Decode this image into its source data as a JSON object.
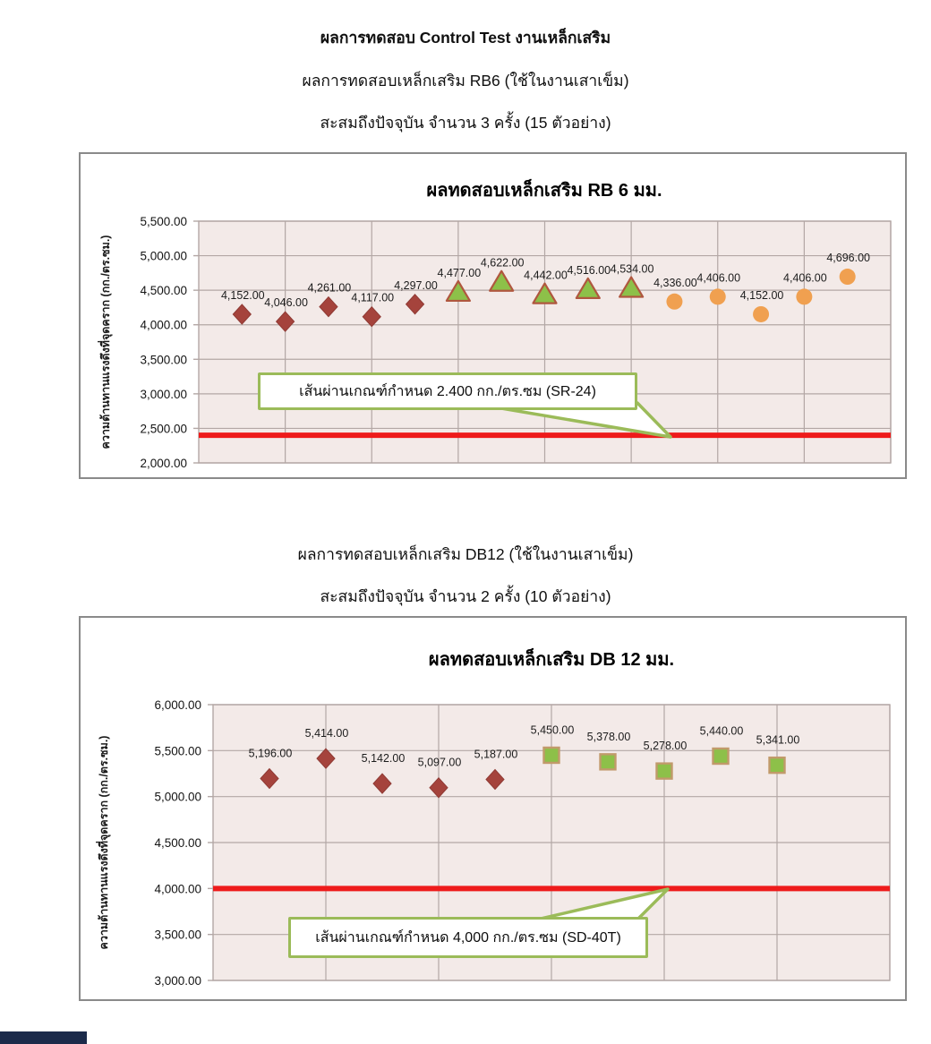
{
  "page": {
    "header": {
      "line1": "ผลการทดสอบ Control Test งานเหล็กเสริม",
      "line2": "ผลการทดสอบเหล็กเสริม RB6 (ใช้ในงานเสาเข็ม)",
      "line3": "สะสมถึงปัจจุบัน จำนวน 3 ครั้ง (15 ตัวอย่าง)"
    },
    "mid_header": {
      "line1": "ผลการทดสอบเหล็กเสริม DB12 (ใช้ในงานเสาเข็ม)",
      "line2": "สะสมถึงปัจจุบัน จำนวน 2 ครั้ง (10 ตัวอย่าง)"
    }
  },
  "colors": {
    "plot_bg": "#F3EAE8",
    "grid": "#B3A7A5",
    "tick_text": "#141414",
    "label_text": "#1c1c1c",
    "limit_red": "#EE1B1B",
    "callout_green": "#9BBB59",
    "chart_border": "#8a8a8a",
    "footer_bar": "#1b2a4a",
    "markers": {
      "diamond": {
        "fill": "#A5433C",
        "stroke": "#8F3A34"
      },
      "triangle": {
        "fill": "#8DC049",
        "stroke": "#B0573F"
      },
      "circle": {
        "fill": "#F0A050",
        "stroke": "none"
      },
      "square": {
        "fill": "#8DC049",
        "stroke": "#C19A6B"
      }
    }
  },
  "chart_data": [
    {
      "type": "scatter",
      "title": "ผลทดสอบเหล็กเสริม RB 6 มม.",
      "ylabel": "ความต้านทานแรงดึงที่จุดคราก  (กก./ตร.ซม.)",
      "xlabel": "",
      "ylim": [
        2000,
        5500
      ],
      "ytick_step": 500,
      "ytick_labels": [
        "5,500.00",
        "5,000.00",
        "4,500.00",
        "4,000.00",
        "3,500.00",
        "3,000.00",
        "2,500.00",
        "2,000.00"
      ],
      "xlim": [
        0,
        16
      ],
      "x_grid_step": 2,
      "grid": true,
      "legend": "none",
      "series": [
        {
          "marker": "diamond",
          "x": [
            1,
            2,
            3,
            4,
            5
          ],
          "values": [
            4152,
            4046,
            4261,
            4117,
            4297
          ],
          "labels": [
            "4,152.00",
            "4,046.00",
            "4,261.00",
            "4,117.00",
            "4,297.00"
          ]
        },
        {
          "marker": "triangle",
          "x": [
            6,
            7,
            8,
            9,
            10
          ],
          "values": [
            4477,
            4622,
            4442,
            4516,
            4534
          ],
          "labels": [
            "4,477.00",
            "4,622.00",
            "4,442.00",
            "4,516.00",
            "4,534.00"
          ]
        },
        {
          "marker": "circle",
          "x": [
            11,
            12,
            13,
            14,
            15
          ],
          "values": [
            4336,
            4406,
            4152,
            4406,
            4696
          ],
          "labels": [
            "4,336.00",
            "4,406.00",
            "4,152.00",
            "4,406.00",
            "4,696.00"
          ]
        }
      ],
      "limit_line": {
        "value": 2400,
        "callout_label": "เส้นผ่านเกณฑ์กำหนด 2.400 กก./ตร.ซม (SR-24)"
      }
    },
    {
      "type": "scatter",
      "title": "ผลทดสอบเหล็กเสริม DB 12 มม.",
      "ylabel": "ความต้านทานแรงดึงที่จุดคราก  (กก./ตร.ซม.)",
      "xlabel": "",
      "ylim": [
        3000,
        6000
      ],
      "ytick_step": 500,
      "ytick_labels": [
        "6,000.00",
        "5,500.00",
        "5,000.00",
        "4,500.00",
        "4,000.00",
        "3,500.00",
        "3,000.00"
      ],
      "xlim": [
        0,
        12
      ],
      "x_grid_step": 2,
      "grid": true,
      "legend": "none",
      "series": [
        {
          "marker": "diamond",
          "x": [
            1,
            2,
            3,
            4,
            5
          ],
          "values": [
            5196,
            5414,
            5142,
            5097,
            5187
          ],
          "labels": [
            "5,196.00",
            "5,414.00",
            "5,142.00",
            "5,097.00",
            "5,187.00"
          ]
        },
        {
          "marker": "square",
          "x": [
            6,
            7,
            8,
            9,
            10
          ],
          "values": [
            5450,
            5378,
            5278,
            5440,
            5341
          ],
          "labels": [
            "5,450.00",
            "5,378.00",
            "5,278.00",
            "5,440.00",
            "5,341.00"
          ]
        }
      ],
      "limit_line": {
        "value": 4000,
        "callout_label": "เส้นผ่านเกณฑ์กำหนด 4,000  กก./ตร.ซม (SD-40T)"
      }
    }
  ]
}
